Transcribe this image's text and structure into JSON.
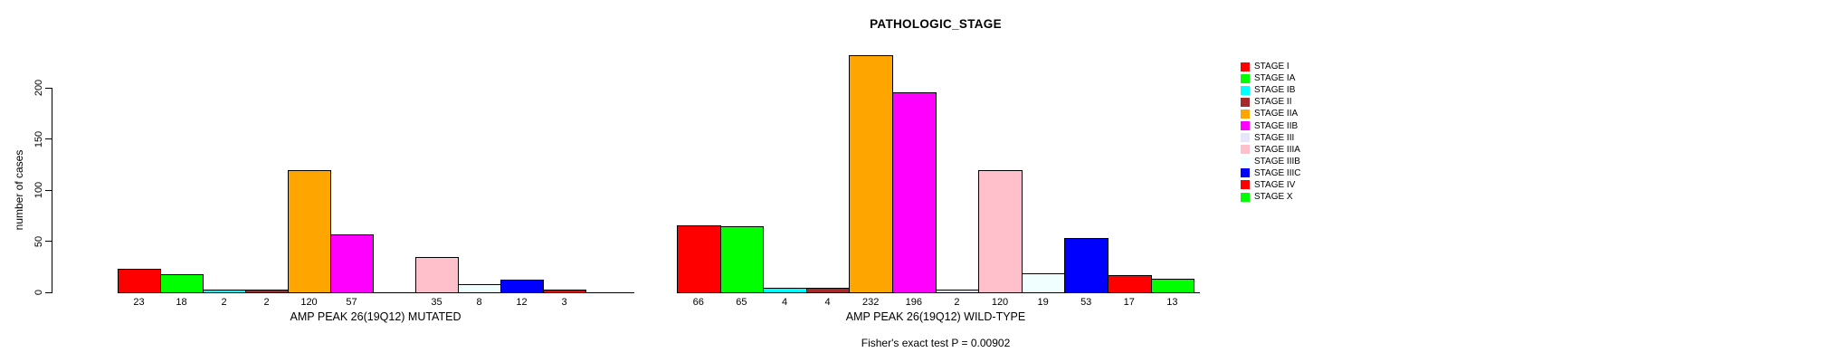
{
  "figure": {
    "title": "PATHOLOGIC_STAGE",
    "footer": "Fisher's exact test P = 0.00902"
  },
  "chart_data": {
    "type": "bar",
    "title": "PATHOLOGIC_STAGE",
    "ylabel": "number of cases",
    "yticks": [
      0,
      50,
      100,
      150,
      200
    ],
    "ylim": [
      0,
      235
    ],
    "grid": false,
    "legend_position": "right",
    "categories": [
      "STAGE I",
      "STAGE IA",
      "STAGE IB",
      "STAGE II",
      "STAGE IIA",
      "STAGE IIB",
      "STAGE III",
      "STAGE IIIA",
      "STAGE IIIB",
      "STAGE IIIC",
      "STAGE IV",
      "STAGE X"
    ],
    "palette": [
      "#FF0000",
      "#00FF00",
      "#00FFFF",
      "#A52A2A",
      "#FFA500",
      "#FF00FF",
      "#E6E6FA",
      "#FFC0CB",
      "#F0FFFF",
      "#0000FF",
      "#FF0000",
      "#00FF00"
    ],
    "series": [
      {
        "name": "AMP PEAK 26(19Q12) MUTATED",
        "values": [
          23,
          18,
          2,
          2,
          120,
          57,
          0,
          35,
          8,
          12,
          3,
          0
        ],
        "bar_labels": [
          "23",
          "18",
          "2",
          "2",
          "120",
          "57",
          "",
          "35",
          "8",
          "12",
          "3",
          ""
        ]
      },
      {
        "name": "AMP PEAK 26(19Q12) WILD-TYPE",
        "values": [
          66,
          65,
          4,
          4,
          232,
          196,
          2,
          120,
          19,
          53,
          17,
          13
        ],
        "bar_labels": [
          "66",
          "65",
          "4",
          "4",
          "232",
          "196",
          "2",
          "120",
          "19",
          "53",
          "17",
          "13"
        ]
      }
    ],
    "annotation": "Fisher's exact test P = 0.00902",
    "legend": [
      {
        "label": "STAGE I",
        "color": "#FF0000"
      },
      {
        "label": "STAGE IA",
        "color": "#00FF00"
      },
      {
        "label": "STAGE IB",
        "color": "#00FFFF"
      },
      {
        "label": "STAGE II",
        "color": "#A52A2A"
      },
      {
        "label": "STAGE IIA",
        "color": "#FFA500"
      },
      {
        "label": "STAGE IIB",
        "color": "#FF00FF"
      },
      {
        "label": "STAGE III",
        "color": "#E6E6FA"
      },
      {
        "label": "STAGE IIIA",
        "color": "#FFC0CB"
      },
      {
        "label": "STAGE IIIB",
        "color": "#F0FFFF"
      },
      {
        "label": "STAGE IIIC",
        "color": "#0000FF"
      },
      {
        "label": "STAGE IV",
        "color": "#FF0000"
      },
      {
        "label": "STAGE X",
        "color": "#00FF00"
      }
    ]
  }
}
